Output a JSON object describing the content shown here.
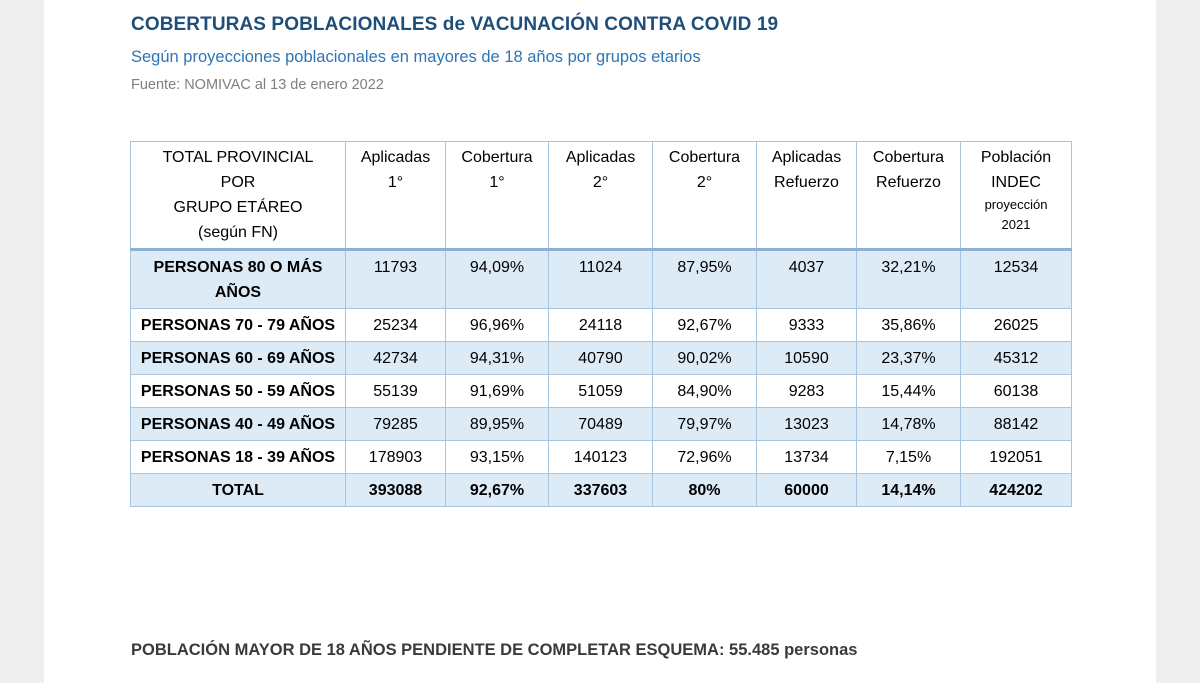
{
  "title": "COBERTURAS POBLACIONALES de VACUNACIÓN CONTRA COVID 19",
  "subtitle": "Según proyecciones poblacionales en mayores de 18 años por grupos etarios",
  "source": "Fuente: NOMIVAC al 13 de enero 2022",
  "table": {
    "headers": {
      "group": [
        "TOTAL PROVINCIAL",
        "POR",
        "GRUPO ETÁREO",
        "(según FN)"
      ],
      "aplicadas1": [
        "Aplicadas",
        "1°"
      ],
      "cobertura1": [
        "Cobertura",
        "1°"
      ],
      "aplicadas2": [
        "Aplicadas",
        "2°"
      ],
      "cobertura2": [
        "Cobertura",
        "2°"
      ],
      "aplicadasRef": [
        "Aplicadas",
        "Refuerzo"
      ],
      "coberturaRef": [
        "Cobertura",
        "Refuerzo"
      ],
      "poblacion": [
        "Población",
        "INDEC",
        "proyección",
        "2021"
      ]
    },
    "rows": [
      {
        "label": "PERSONAS 80 O MÁS AÑOS",
        "cells": [
          "11793",
          "94,09%",
          "11024",
          "87,95%",
          "4037",
          "32,21%",
          "12534"
        ]
      },
      {
        "label": "PERSONAS 70 - 79 AÑOS",
        "cells": [
          "25234",
          "96,96%",
          "24118",
          "92,67%",
          "9333",
          "35,86%",
          "26025"
        ]
      },
      {
        "label": "PERSONAS 60 - 69 AÑOS",
        "cells": [
          "42734",
          "94,31%",
          "40790",
          "90,02%",
          "10590",
          "23,37%",
          "45312"
        ]
      },
      {
        "label": "PERSONAS 50 - 59 AÑOS",
        "cells": [
          "55139",
          "91,69%",
          "51059",
          "84,90%",
          "9283",
          "15,44%",
          "60138"
        ]
      },
      {
        "label": "PERSONAS 40 - 49 AÑOS",
        "cells": [
          "79285",
          "89,95%",
          "70489",
          "79,97%",
          "13023",
          "14,78%",
          "88142"
        ]
      },
      {
        "label": "PERSONAS 18 - 39 AÑOS",
        "cells": [
          "178903",
          "93,15%",
          "140123",
          "72,96%",
          "13734",
          "7,15%",
          "192051"
        ]
      }
    ],
    "total": {
      "label": "TOTAL",
      "cells": [
        "393088",
        "92,67%",
        "337603",
        "80%",
        "60000",
        "14,14%",
        "424202"
      ]
    }
  },
  "footer": "POBLACIÓN MAYOR DE 18 AÑOS PENDIENTE DE COMPLETAR ESQUEMA: 55.485 personas"
}
